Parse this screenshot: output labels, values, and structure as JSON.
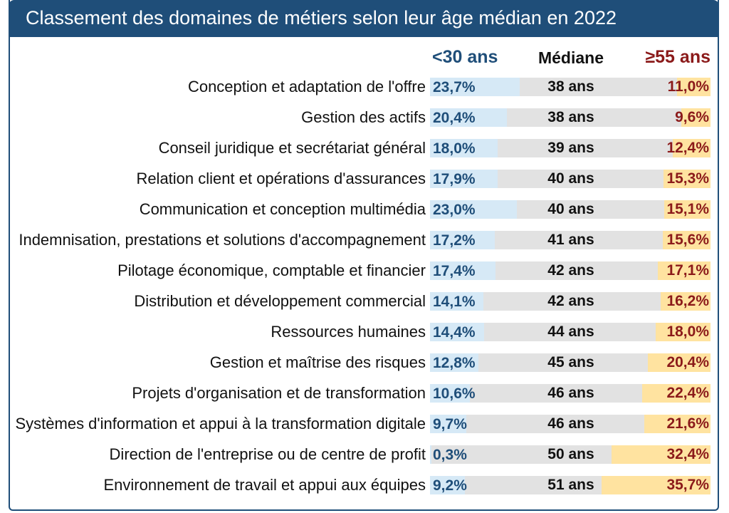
{
  "title": "Classement des domaines de métiers selon leur âge médian en 2022",
  "colors": {
    "header_bg": "#1f4e79",
    "young_text": "#1f4e79",
    "old_text": "#8b1a1a",
    "young_bar": "#d6e9f6",
    "old_bar": "#ffe3a0",
    "median_track": "#e2e2e2"
  },
  "chart_data": {
    "type": "table",
    "title": "Classement des domaines de métiers selon leur âge médian en 2022",
    "columns": [
      "<30 ans",
      "Médiane",
      "≥55 ans"
    ],
    "rows": [
      {
        "label": "Conception et adaptation de l'offre",
        "young": "23,7%",
        "median": "38 ans",
        "old": "11,0%",
        "young_value": 23.7,
        "old_value": 11.0
      },
      {
        "label": "Gestion des actifs",
        "young": "20,4%",
        "median": "38 ans",
        "old": "9,6%",
        "young_value": 20.4,
        "old_value": 9.6
      },
      {
        "label": "Conseil juridique et secrétariat général",
        "young": "18,0%",
        "median": "39 ans",
        "old": "12,4%",
        "young_value": 18.0,
        "old_value": 12.4
      },
      {
        "label": "Relation client et opérations d'assurances",
        "young": "17,9%",
        "median": "40 ans",
        "old": "15,3%",
        "young_value": 17.9,
        "old_value": 15.3
      },
      {
        "label": "Communication et conception multimédia",
        "young": "23,0%",
        "median": "40 ans",
        "old": "15,1%",
        "young_value": 23.0,
        "old_value": 15.1
      },
      {
        "label": "Indemnisation, prestations et solutions d'accompagnement",
        "young": "17,2%",
        "median": "41 ans",
        "old": "15,6%",
        "young_value": 17.2,
        "old_value": 15.6
      },
      {
        "label": "Pilotage économique, comptable et financier",
        "young": "17,4%",
        "median": "42 ans",
        "old": "17,1%",
        "young_value": 17.4,
        "old_value": 17.1
      },
      {
        "label": "Distribution et développement commercial",
        "young": "14,1%",
        "median": "42 ans",
        "old": "16,2%",
        "young_value": 14.1,
        "old_value": 16.2
      },
      {
        "label": "Ressources humaines",
        "young": "14,4%",
        "median": "44 ans",
        "old": "18,0%",
        "young_value": 14.4,
        "old_value": 18.0
      },
      {
        "label": "Gestion et maîtrise des risques",
        "young": "12,8%",
        "median": "45 ans",
        "old": "20,4%",
        "young_value": 12.8,
        "old_value": 20.4
      },
      {
        "label": "Projets d'organisation et de transformation",
        "young": "10,6%",
        "median": "46 ans",
        "old": "22,4%",
        "young_value": 10.6,
        "old_value": 22.4
      },
      {
        "label": "Systèmes d'information et appui à la transformation digitale",
        "young": "9,7%",
        "median": "46 ans",
        "old": "21,6%",
        "young_value": 9.7,
        "old_value": 21.6
      },
      {
        "label": "Direction de l'entreprise ou de centre de profit",
        "young": "0,3%",
        "median": "50 ans",
        "old": "32,4%",
        "young_value": 0.3,
        "old_value": 32.4
      },
      {
        "label": "Environnement de travail et appui aux équipes",
        "young": "9,2%",
        "median": "51 ans",
        "old": "35,7%",
        "young_value": 9.2,
        "old_value": 35.7
      }
    ]
  }
}
